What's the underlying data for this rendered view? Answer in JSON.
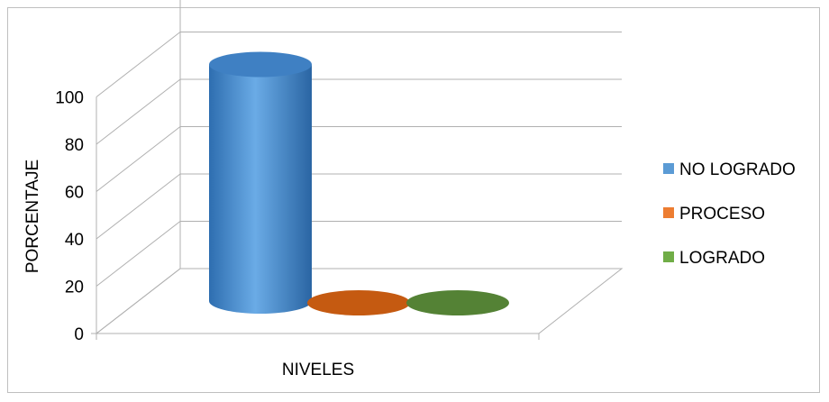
{
  "chart_data": {
    "type": "bar",
    "variant": "3d-cylinder",
    "title": "",
    "xlabel": "NIVELES",
    "ylabel": "PORCENTAJE",
    "ylim": [
      0,
      100
    ],
    "yticks": [
      "0",
      "20",
      "40",
      "60",
      "80",
      "100"
    ],
    "grid": true,
    "legend_position": "right",
    "series": [
      {
        "name": "NO LOGRADO",
        "values": [
          100
        ],
        "color": "#5b9bd5"
      },
      {
        "name": "PROCESO",
        "values": [
          0
        ],
        "color": "#ed7d31"
      },
      {
        "name": "LOGRADO",
        "values": [
          0
        ],
        "color": "#70ad47"
      }
    ]
  }
}
